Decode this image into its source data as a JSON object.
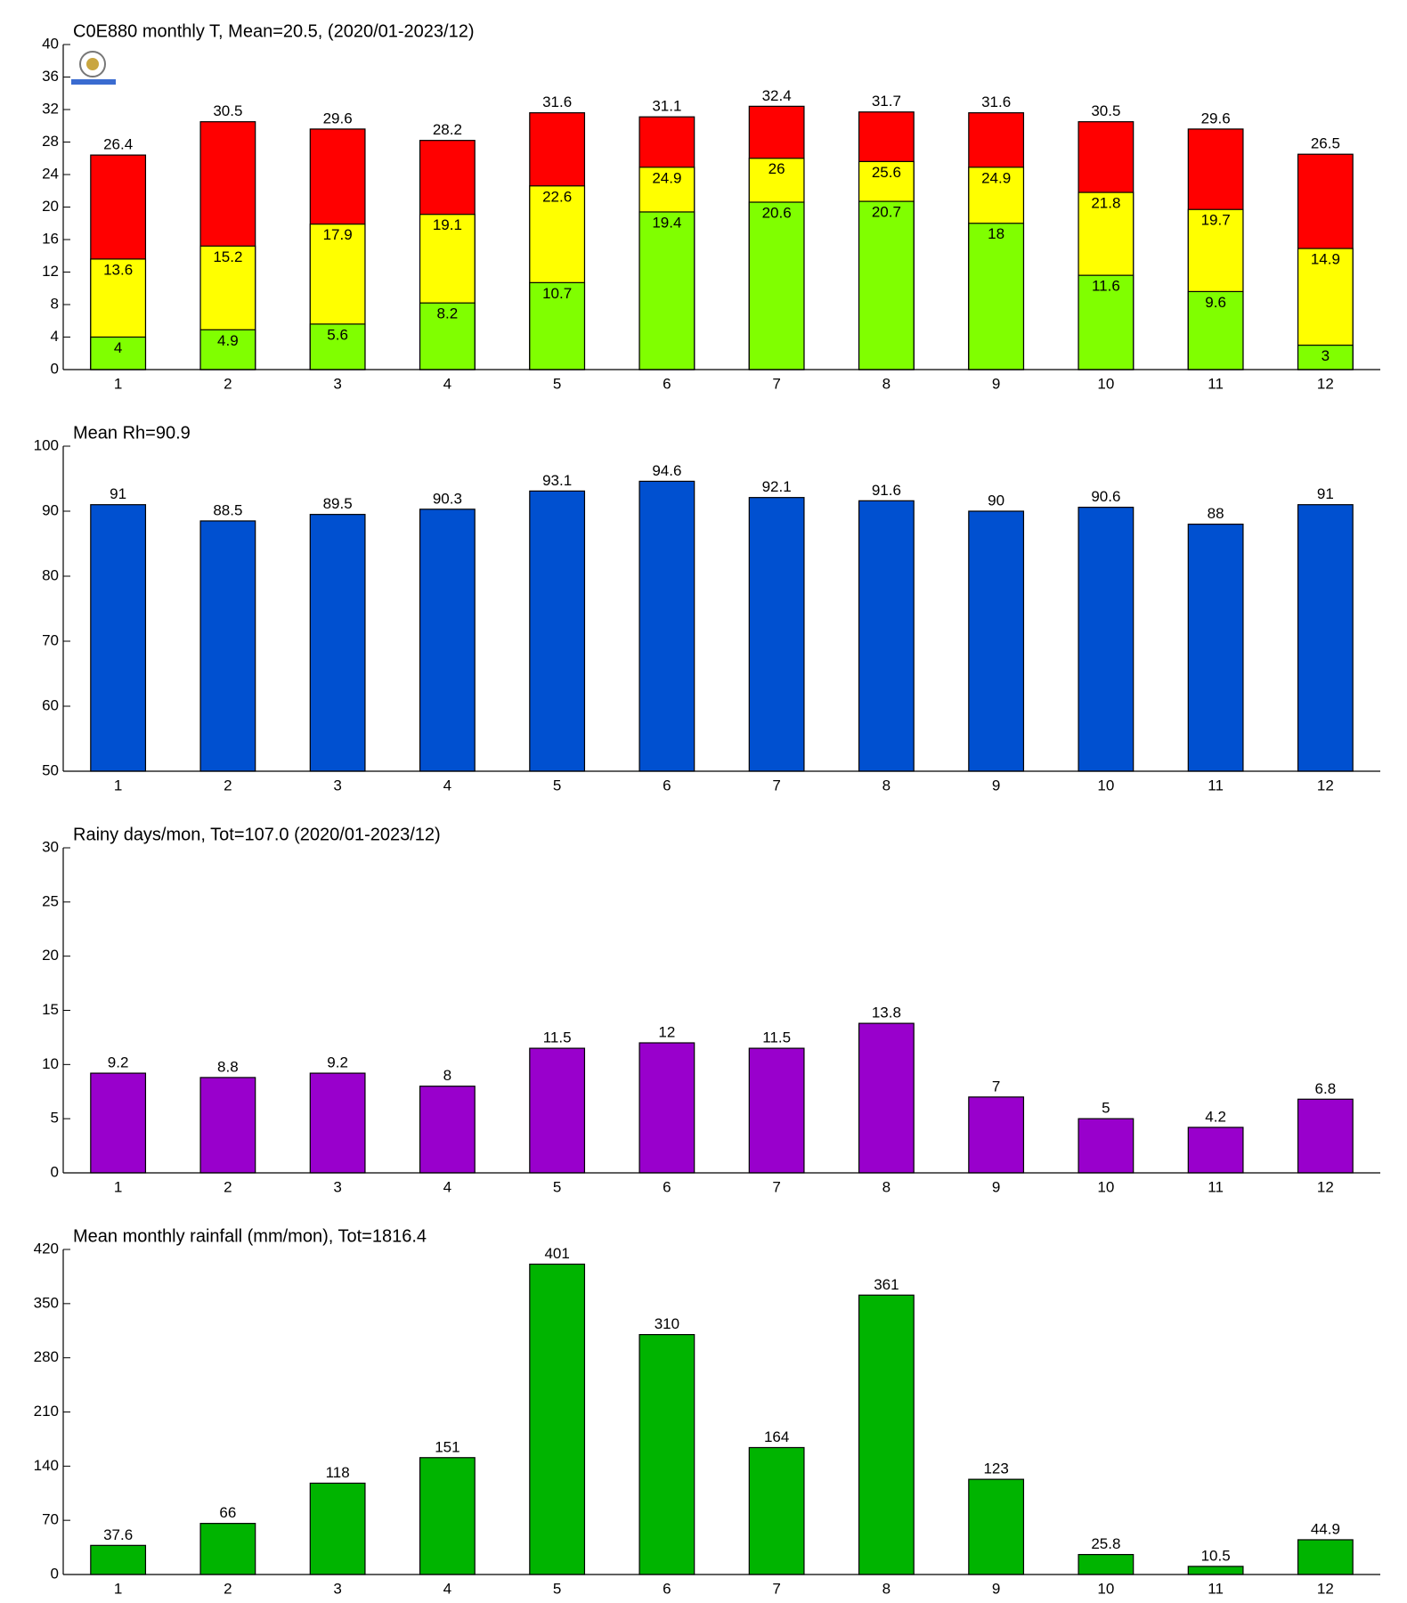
{
  "chart_data": [
    {
      "type": "bar",
      "title": "C0E880 monthly T, Mean=20.5, (2020/01-2023/12)",
      "categories": [
        "1",
        "2",
        "3",
        "4",
        "5",
        "6",
        "7",
        "8",
        "9",
        "10",
        "11",
        "12"
      ],
      "series": [
        {
          "color": "#ff0000",
          "values": [
            26.4,
            30.5,
            29.6,
            28.2,
            31.6,
            31.1,
            32.4,
            31.7,
            31.6,
            30.5,
            29.6,
            26.5
          ]
        },
        {
          "color": "#ffff00",
          "values": [
            13.6,
            15.2,
            17.9,
            19.1,
            22.6,
            24.9,
            26,
            25.6,
            24.9,
            21.8,
            19.7,
            14.9
          ]
        },
        {
          "color": "#80ff00",
          "values": [
            4,
            4.9,
            5.6,
            8.2,
            10.7,
            19.4,
            20.6,
            20.7,
            18,
            11.6,
            9.6,
            3
          ]
        }
      ],
      "ylim": [
        0,
        40
      ],
      "yticks": [
        0,
        4,
        8,
        12,
        16,
        20,
        24,
        28,
        32,
        36,
        40
      ]
    },
    {
      "type": "bar",
      "title": "Mean Rh=90.9",
      "categories": [
        "1",
        "2",
        "3",
        "4",
        "5",
        "6",
        "7",
        "8",
        "9",
        "10",
        "11",
        "12"
      ],
      "series": [
        {
          "color": "#0050d0",
          "values": [
            91,
            88.5,
            89.5,
            90.3,
            93.1,
            94.6,
            92.1,
            91.6,
            90,
            90.6,
            88,
            91
          ]
        }
      ],
      "ylim": [
        50,
        100
      ],
      "yticks": [
        50,
        60,
        70,
        80,
        90,
        100
      ]
    },
    {
      "type": "bar",
      "title": "Rainy days/mon, Tot=107.0 (2020/01-2023/12)",
      "categories": [
        "1",
        "2",
        "3",
        "4",
        "5",
        "6",
        "7",
        "8",
        "9",
        "10",
        "11",
        "12"
      ],
      "series": [
        {
          "color": "#9900cc",
          "values": [
            9.2,
            8.8,
            9.2,
            8,
            11.5,
            12,
            11.5,
            13.8,
            7,
            5,
            4.2,
            6.8
          ]
        }
      ],
      "ylim": [
        0,
        30
      ],
      "yticks": [
        0,
        5,
        10,
        15,
        20,
        25,
        30
      ]
    },
    {
      "type": "bar",
      "title": "Mean monthly rainfall (mm/mon), Tot=1816.4",
      "categories": [
        "1",
        "2",
        "3",
        "4",
        "5",
        "6",
        "7",
        "8",
        "9",
        "10",
        "11",
        "12"
      ],
      "series": [
        {
          "color": "#00b400",
          "values": [
            37.6,
            66,
            118,
            151,
            401,
            310,
            164,
            361,
            123,
            25.8,
            10.5,
            44.9
          ]
        }
      ],
      "ylim": [
        0,
        420
      ],
      "yticks": [
        0,
        70,
        140,
        210,
        280,
        350,
        420
      ]
    }
  ]
}
